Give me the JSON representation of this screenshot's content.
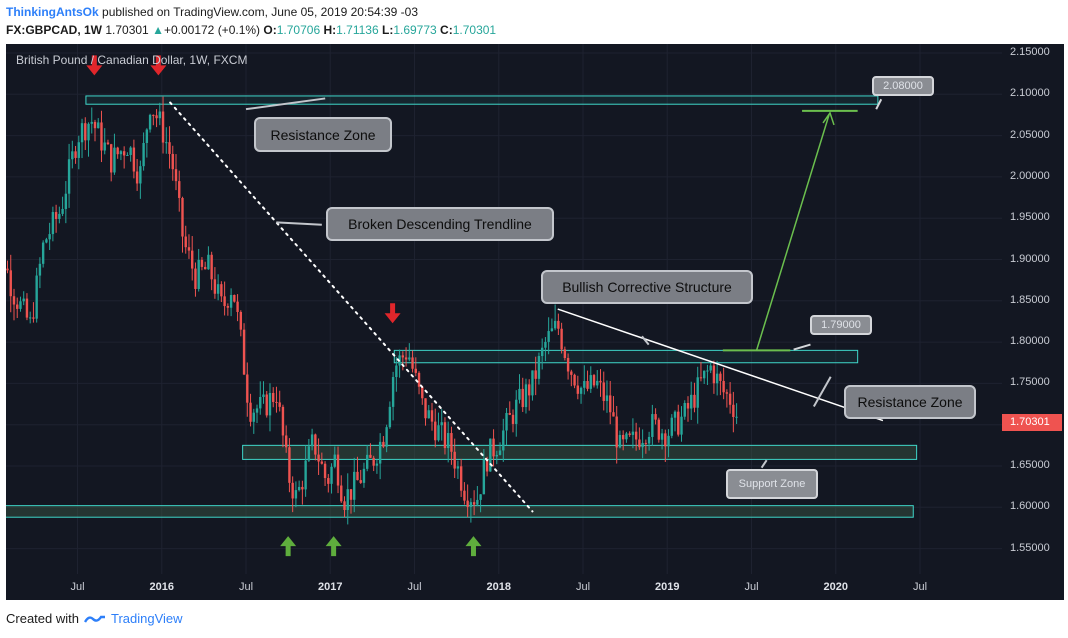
{
  "header": {
    "author": "ThinkingAntsOk",
    "published": "published on TradingView.com, June 05, 2019 20:54:39 -03",
    "symbol": "FX:GBPCAD, 1W",
    "last": "1.70301",
    "change": "+0.00172 (+0.1%)",
    "o_label": "O:",
    "open": "1.70706",
    "h_label": "H:",
    "high": "1.71136",
    "l_label": "L:",
    "low": "1.69773",
    "c_label": "C:",
    "close": "1.70301"
  },
  "chart_data": {
    "type": "candlestick",
    "title": "British Pound / Canadian Dollar, 1W, FXCM",
    "ylim": [
      1.5,
      2.16
    ],
    "y_ticks": [
      "2.15000",
      "2.10000",
      "2.05000",
      "2.00000",
      "1.95000",
      "1.90000",
      "1.85000",
      "1.80000",
      "1.75000",
      "1.70000",
      "1.65000",
      "1.60000",
      "1.55000"
    ],
    "x_ticks": [
      {
        "label": "Jul",
        "t": 2015.5,
        "year": false
      },
      {
        "label": "2016",
        "t": 2016.0,
        "year": true
      },
      {
        "label": "Jul",
        "t": 2016.5,
        "year": false
      },
      {
        "label": "2017",
        "t": 2017.0,
        "year": true
      },
      {
        "label": "Jul",
        "t": 2017.5,
        "year": false
      },
      {
        "label": "2018",
        "t": 2018.0,
        "year": true
      },
      {
        "label": "Jul",
        "t": 2018.5,
        "year": false
      },
      {
        "label": "2019",
        "t": 2019.0,
        "year": true
      },
      {
        "label": "Jul",
        "t": 2019.5,
        "year": false
      },
      {
        "label": "2020",
        "t": 2020.0,
        "year": true
      },
      {
        "label": "Jul",
        "t": 2020.5,
        "year": false
      }
    ],
    "last_price": "1.70301",
    "price_path": [
      [
        2014.95,
        1.89
      ],
      [
        2015.02,
        1.93
      ],
      [
        2015.12,
        1.86
      ],
      [
        2015.22,
        1.82
      ],
      [
        2015.3,
        1.92
      ],
      [
        2015.4,
        1.96
      ],
      [
        2015.5,
        2.05
      ],
      [
        2015.58,
        2.07
      ],
      [
        2015.7,
        2.02
      ],
      [
        2015.8,
        2.04
      ],
      [
        2015.87,
        2.0
      ],
      [
        2015.93,
        2.09
      ],
      [
        2016.0,
        2.06
      ],
      [
        2016.06,
        2.02
      ],
      [
        2016.13,
        1.92
      ],
      [
        2016.2,
        1.88
      ],
      [
        2016.28,
        1.89
      ],
      [
        2016.36,
        1.84
      ],
      [
        2016.42,
        1.87
      ],
      [
        2016.47,
        1.8
      ],
      [
        2016.52,
        1.72
      ],
      [
        2016.6,
        1.72
      ],
      [
        2016.68,
        1.74
      ],
      [
        2016.75,
        1.64
      ],
      [
        2016.8,
        1.61
      ],
      [
        2016.9,
        1.68
      ],
      [
        2016.98,
        1.63
      ],
      [
        2017.03,
        1.66
      ],
      [
        2017.08,
        1.61
      ],
      [
        2017.16,
        1.63
      ],
      [
        2017.26,
        1.66
      ],
      [
        2017.32,
        1.69
      ],
      [
        2017.38,
        1.77
      ],
      [
        2017.46,
        1.79
      ],
      [
        2017.55,
        1.72
      ],
      [
        2017.65,
        1.69
      ],
      [
        2017.72,
        1.67
      ],
      [
        2017.8,
        1.62
      ],
      [
        2017.87,
        1.61
      ],
      [
        2017.93,
        1.66
      ],
      [
        2018.0,
        1.68
      ],
      [
        2018.1,
        1.72
      ],
      [
        2018.2,
        1.75
      ],
      [
        2018.28,
        1.8
      ],
      [
        2018.35,
        1.82
      ],
      [
        2018.42,
        1.77
      ],
      [
        2018.5,
        1.74
      ],
      [
        2018.58,
        1.75
      ],
      [
        2018.66,
        1.72
      ],
      [
        2018.72,
        1.67
      ],
      [
        2018.8,
        1.68
      ],
      [
        2018.9,
        1.7
      ],
      [
        2019.0,
        1.69
      ],
      [
        2019.1,
        1.71
      ],
      [
        2019.2,
        1.75
      ],
      [
        2019.26,
        1.77
      ],
      [
        2019.33,
        1.74
      ],
      [
        2019.38,
        1.73
      ],
      [
        2019.43,
        1.703
      ]
    ],
    "zones": [
      {
        "name": "top-resistance-zone",
        "y1": 2.088,
        "y2": 2.098,
        "t1": 2015.55,
        "t2": 2020.25,
        "fill": "rgba(38,166,154,0.10)"
      },
      {
        "name": "mid-resistance-zone",
        "y1": 1.775,
        "y2": 1.79,
        "t1": 2017.38,
        "t2": 2020.13,
        "fill": "rgba(38,166,154,0.10)"
      },
      {
        "name": "support-zone",
        "y1": 1.658,
        "y2": 1.675,
        "t1": 2016.48,
        "t2": 2020.48,
        "fill": "rgba(60,90,70,0.45)"
      },
      {
        "name": "bottom-support-zone",
        "y1": 1.588,
        "y2": 1.602,
        "t1": 2014.98,
        "t2": 2020.46,
        "fill": "rgba(60,90,70,0.45)"
      }
    ],
    "lines": {
      "descending_trendline": [
        [
          2016.05,
          2.09
        ],
        [
          2018.2,
          1.595
        ]
      ],
      "corrective_top": [
        [
          2018.35,
          1.84
        ],
        [
          2020.28,
          1.705
        ]
      ],
      "projection": [
        [
          2019.53,
          1.79
        ],
        [
          2019.96,
          2.075
        ]
      ],
      "target_2080": [
        [
          2019.8,
          2.08
        ],
        [
          2020.13,
          2.08
        ]
      ],
      "target_1790": [
        [
          2019.33,
          1.79
        ],
        [
          2019.73,
          1.79
        ]
      ]
    },
    "arrows_down": [
      [
        2015.6,
        2.135
      ],
      [
        2015.98,
        2.135
      ],
      [
        2017.37,
        1.835
      ]
    ],
    "arrows_up": [
      [
        2016.75,
        1.553
      ],
      [
        2017.02,
        1.553
      ],
      [
        2017.85,
        1.553
      ]
    ],
    "annotations": {
      "resistance_top": "Resistance Zone",
      "broken_trendline": "Broken Descending Trendline",
      "bullish_structure": "Bullish Corrective Structure",
      "resistance_mid": "Resistance Zone",
      "support": "Support Zone",
      "target_high": "2.08000",
      "target_mid": "1.79000"
    }
  },
  "footer": {
    "created": "Created with",
    "brand": "TradingView"
  },
  "colors": {
    "bg": "#131722",
    "up": "#26a69a",
    "down": "#ef5350",
    "zone_border": "#3fd6c9"
  }
}
